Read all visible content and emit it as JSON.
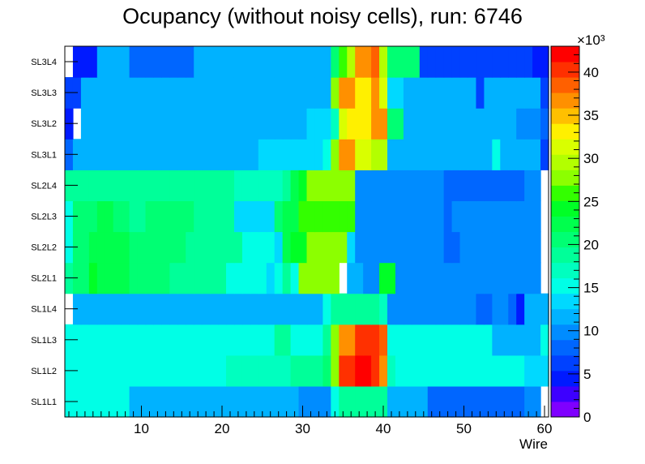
{
  "chart_data": {
    "type": "heatmap",
    "title": "Ocupancy (without noisy cells), run: 6746",
    "xlabel": "Wire",
    "ylabel": "",
    "xlim": [
      0.5,
      60.5
    ],
    "x_ticks": [
      10,
      20,
      30,
      40,
      50,
      60
    ],
    "y_categories": [
      "SL1L1",
      "SL1L2",
      "SL1L3",
      "SL1L4",
      "SL2L1",
      "SL2L2",
      "SL2L3",
      "SL2L4",
      "SL3L1",
      "SL3L2",
      "SL3L3",
      "SL3L4"
    ],
    "zlim": [
      0,
      43000
    ],
    "z_ticks": [
      "0",
      "5",
      "10",
      "15",
      "20",
      "25",
      "30",
      "35",
      "40"
    ],
    "z_exponent": "×10³",
    "palette": [
      "#7f00ff",
      "#3d00ff",
      "#001aff",
      "#0041ff",
      "#0066ff",
      "#008cff",
      "#00b2ff",
      "#00d9ff",
      "#00ffe6",
      "#00ffbf",
      "#00ff99",
      "#00ff73",
      "#00ff4d",
      "#00ff26",
      "#33ff00",
      "#8cff00",
      "#b3ff00",
      "#d9ff00",
      "#fff000",
      "#ffc000",
      "#ff9000",
      "#ff6000",
      "#ff3000",
      "#ff0000"
    ],
    "rows": {
      "SL1L1": [
        15,
        15,
        15,
        15,
        15,
        15,
        15,
        15,
        12,
        12,
        11,
        11,
        11,
        11,
        11,
        12,
        11,
        11,
        11,
        11,
        11,
        11,
        11,
        11,
        11,
        11,
        11,
        11,
        11,
        10,
        10,
        10,
        10,
        15,
        18,
        18,
        19,
        19,
        18,
        18,
        11,
        11,
        11,
        11,
        11,
        8,
        8,
        8,
        8,
        8,
        8,
        8,
        8,
        8,
        8,
        8,
        8,
        9,
        9,
        null
      ],
      "SL1L2": [
        16,
        16,
        16,
        16,
        16,
        15,
        15,
        16,
        16,
        16,
        15,
        15,
        15,
        15,
        15,
        16,
        16,
        16,
        16,
        16,
        17,
        17,
        17,
        17,
        17,
        17,
        17,
        17,
        18,
        18,
        18,
        18,
        20,
        27,
        40,
        40,
        42,
        42,
        40,
        37,
        17,
        16,
        16,
        16,
        16,
        16,
        16,
        16,
        16,
        16,
        16,
        16,
        15,
        15,
        15,
        15,
        16,
        14,
        14,
        14
      ],
      "SL1L3": [
        16,
        16,
        16,
        16,
        16,
        16,
        16,
        16,
        15,
        15,
        15,
        15,
        16,
        16,
        15,
        15,
        16,
        16,
        16,
        16,
        16,
        16,
        16,
        16,
        16,
        16,
        18,
        18,
        16,
        16,
        16,
        16,
        18,
        27,
        36,
        36,
        40,
        40,
        40,
        38,
        15,
        15,
        15,
        15,
        15,
        15,
        15,
        15,
        15,
        15,
        15,
        15,
        15,
        12,
        12,
        12,
        12,
        12,
        12,
        16
      ],
      "SL1L4": [
        null,
        12,
        12,
        12,
        12,
        12,
        12,
        12,
        12,
        12,
        12,
        12,
        12,
        12,
        12,
        12,
        12,
        12,
        12,
        12,
        12,
        12,
        12,
        12,
        12,
        12,
        12,
        12,
        12,
        12,
        11,
        11,
        16,
        18,
        18,
        18,
        19,
        19,
        18,
        17,
        10,
        10,
        9,
        9,
        9,
        9,
        9,
        9,
        9,
        9,
        9,
        8,
        8,
        9,
        9,
        8,
        4,
        11,
        11,
        11
      ],
      "SL2L1": [
        19,
        21,
        21,
        24,
        22,
        22,
        22,
        22,
        21,
        21,
        21,
        21,
        21,
        19,
        19,
        19,
        19,
        19,
        19,
        19,
        15,
        15,
        15,
        15,
        15,
        14,
        15,
        19,
        15,
        27,
        27,
        27,
        27,
        27,
        null,
        12,
        12,
        10,
        10,
        24,
        24,
        10,
        10,
        10,
        10,
        9,
        9,
        9,
        9,
        9,
        9,
        9,
        9,
        9,
        10,
        10,
        10,
        10,
        9,
        null
      ],
      "SL2L2": [
        15,
        20,
        21,
        22,
        22,
        22,
        22,
        22,
        20,
        20,
        20,
        20,
        21,
        21,
        21,
        18,
        18,
        18,
        18,
        18,
        18,
        18,
        15,
        15,
        15,
        15,
        14,
        22,
        25,
        25,
        27,
        27,
        27,
        27,
        27,
        14,
        9,
        9,
        9,
        9,
        9,
        9,
        9,
        9,
        9,
        9,
        9,
        8,
        8,
        9,
        9,
        9,
        9,
        9,
        9,
        9,
        9,
        9,
        9,
        null
      ],
      "SL2L3": [
        16,
        21,
        21,
        21,
        22,
        22,
        20,
        20,
        18,
        18,
        20,
        20,
        20,
        20,
        20,
        20,
        18,
        18,
        18,
        18,
        18,
        14,
        14,
        14,
        14,
        14,
        21,
        23,
        23,
        26,
        26,
        26,
        26,
        26,
        26,
        26,
        10,
        9,
        9,
        9,
        9,
        9,
        9,
        9,
        9,
        9,
        9,
        8,
        9,
        9,
        9,
        9,
        9,
        9,
        9,
        9,
        9,
        9,
        9,
        null
      ],
      "SL2L4": [
        18,
        19,
        19,
        19,
        19,
        19,
        19,
        19,
        18,
        18,
        19,
        19,
        19,
        19,
        19,
        19,
        19,
        19,
        19,
        19,
        19,
        17,
        17,
        17,
        17,
        17,
        17,
        19,
        22,
        25,
        27,
        27,
        27,
        27,
        27,
        27,
        9,
        9,
        9,
        9,
        9,
        9,
        9,
        9,
        9,
        9,
        9,
        8,
        8,
        8,
        8,
        8,
        8,
        8,
        8,
        8,
        8,
        9,
        9,
        null
      ],
      "SL3L1": [
        8,
        11,
        11,
        11,
        12,
        12,
        12,
        12,
        11,
        11,
        11,
        11,
        11,
        11,
        11,
        11,
        11,
        11,
        11,
        11,
        11,
        11,
        11,
        11,
        14,
        14,
        14,
        14,
        14,
        14,
        14,
        14,
        16,
        28,
        36,
        36,
        32,
        32,
        30,
        30,
        12,
        12,
        12,
        12,
        12,
        12,
        12,
        12,
        12,
        12,
        12,
        12,
        12,
        16,
        12,
        12,
        12,
        12,
        12,
        6
      ],
      "SL3L2": [
        5,
        null,
        11,
        11,
        11,
        11,
        11,
        11,
        11,
        11,
        11,
        11,
        11,
        11,
        11,
        11,
        11,
        11,
        11,
        11,
        11,
        11,
        11,
        11,
        11,
        11,
        11,
        11,
        12,
        12,
        14,
        14,
        14,
        17,
        32,
        34,
        34,
        34,
        37,
        36,
        20,
        20,
        12,
        12,
        12,
        12,
        12,
        12,
        12,
        12,
        12,
        12,
        12,
        12,
        12,
        12,
        9,
        10,
        10,
        8
      ],
      "SL3L3": [
        7,
        6,
        11,
        11,
        11,
        11,
        11,
        11,
        11,
        11,
        11,
        11,
        11,
        11,
        11,
        11,
        11,
        11,
        11,
        11,
        11,
        11,
        11,
        11,
        11,
        11,
        11,
        11,
        11,
        11,
        11,
        11,
        11,
        28,
        36,
        36,
        34,
        34,
        37,
        32,
        13,
        13,
        12,
        12,
        12,
        12,
        12,
        12,
        12,
        12,
        12,
        6,
        11,
        11,
        11,
        11,
        11,
        11,
        11,
        6
      ],
      "SL3L4": [
        null,
        5,
        5,
        5,
        11,
        11,
        11,
        11,
        8,
        8,
        8,
        8,
        8,
        8,
        8,
        8,
        11,
        11,
        11,
        11,
        11,
        11,
        11,
        11,
        11,
        11,
        11,
        11,
        11,
        11,
        11,
        11,
        11,
        20,
        26,
        30,
        37,
        37,
        39,
        30,
        20,
        20,
        20,
        20,
        7,
        7,
        7,
        7,
        7,
        7,
        7,
        7,
        7,
        7,
        7,
        7,
        7,
        7,
        5,
        5
      ]
    }
  }
}
